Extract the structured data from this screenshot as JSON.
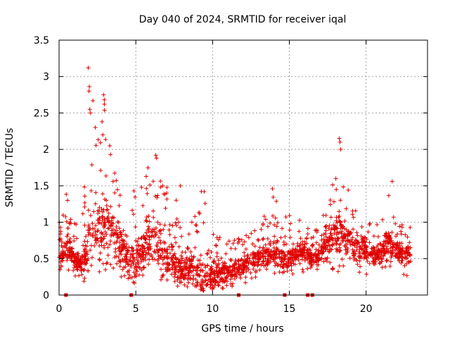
{
  "chart_data": {
    "type": "scatter",
    "title": "Day 040 of 2024, SRMTID for receiver iqal",
    "xlabel": "GPS time / hours",
    "ylabel": "SRMTID / TECUs",
    "xlim": [
      0,
      24
    ],
    "ylim": [
      0,
      3.5
    ],
    "x_ticks": [
      0,
      5,
      10,
      15,
      20
    ],
    "x_tick_labels": [
      "0",
      "5",
      "10",
      "15",
      "20"
    ],
    "y_ticks": [
      0,
      0.5,
      1,
      1.5,
      2,
      2.5,
      3,
      3.5
    ],
    "y_tick_labels": [
      "0",
      "0.5",
      "1",
      "1.5",
      "2",
      "2.5",
      "3",
      "3.5"
    ],
    "grid": true,
    "marker": "+",
    "series_color": "#e00000",
    "series": [
      {
        "name": "SRMTID",
        "envelope_x": [
          0,
          0.5,
          1,
          1.5,
          2,
          2.5,
          3,
          3.5,
          4,
          4.5,
          5,
          5.5,
          6,
          6.5,
          7,
          7.5,
          8,
          8.5,
          9,
          9.5,
          10,
          10.5,
          11,
          11.5,
          12,
          12.5,
          13,
          13.5,
          14,
          14.5,
          15,
          15.5,
          16,
          16.5,
          17,
          17.5,
          18,
          18.5,
          19,
          19.5,
          20,
          20.5,
          21,
          21.5,
          22,
          22.5,
          23
        ],
        "envelope_median": [
          0.6,
          0.65,
          0.5,
          0.4,
          0.85,
          0.95,
          0.95,
          0.9,
          0.7,
          0.5,
          0.45,
          0.65,
          0.75,
          0.6,
          0.5,
          0.45,
          0.3,
          0.4,
          0.3,
          0.25,
          0.25,
          0.3,
          0.3,
          0.3,
          0.4,
          0.5,
          0.5,
          0.55,
          0.55,
          0.5,
          0.5,
          0.6,
          0.6,
          0.5,
          0.55,
          0.7,
          0.85,
          0.8,
          0.7,
          0.65,
          0.65,
          0.55,
          0.6,
          0.75,
          0.6,
          0.55,
          0.6
        ],
        "envelope_max": [
          1.55,
          1.4,
          1.0,
          0.9,
          3.1,
          2.1,
          2.75,
          2.05,
          1.5,
          1.3,
          1.55,
          1.5,
          1.95,
          1.6,
          1.5,
          1.5,
          0.9,
          1.0,
          1.45,
          1.4,
          1.05,
          0.8,
          0.8,
          0.9,
          0.8,
          0.85,
          1.0,
          1.25,
          1.45,
          1.0,
          1.15,
          1.0,
          1.1,
          0.75,
          1.2,
          1.15,
          2.15,
          1.5,
          1.5,
          1.25,
          1.1,
          0.9,
          1.1,
          1.55,
          1.0,
          0.95,
          1.05
        ],
        "envelope_min": [
          0.2,
          0.3,
          0.25,
          0.2,
          0.1,
          0.2,
          0.3,
          0.3,
          0.25,
          0.1,
          0.15,
          0.2,
          0.25,
          0.2,
          0.2,
          0.15,
          0.05,
          0.1,
          0.1,
          0.05,
          0.08,
          0.08,
          0.1,
          0.1,
          0.15,
          0.2,
          0.25,
          0.3,
          0.3,
          0.3,
          0.25,
          0.3,
          0.3,
          0.35,
          0.3,
          0.35,
          0.3,
          0.35,
          0.35,
          0.3,
          0.25,
          0.3,
          0.3,
          0.3,
          0.3,
          0.25,
          0.3
        ],
        "peaks": [
          {
            "x": 1.9,
            "y": 3.12
          },
          {
            "x": 1.95,
            "y": 2.8
          },
          {
            "x": 2.0,
            "y": 2.55
          },
          {
            "x": 2.05,
            "y": 2.5
          },
          {
            "x": 2.9,
            "y": 2.75
          },
          {
            "x": 2.95,
            "y": 2.68
          },
          {
            "x": 2.95,
            "y": 2.62
          },
          {
            "x": 2.8,
            "y": 2.38
          },
          {
            "x": 2.85,
            "y": 2.2
          },
          {
            "x": 3.3,
            "y": 2.05
          },
          {
            "x": 3.35,
            "y": 1.93
          },
          {
            "x": 6.3,
            "y": 1.92
          },
          {
            "x": 6.35,
            "y": 1.88
          },
          {
            "x": 7.9,
            "y": 1.5
          },
          {
            "x": 9.45,
            "y": 1.42
          },
          {
            "x": 13.9,
            "y": 1.46
          },
          {
            "x": 18.25,
            "y": 2.15
          },
          {
            "x": 18.3,
            "y": 2.1
          },
          {
            "x": 18.35,
            "y": 2.0
          },
          {
            "x": 21.7,
            "y": 1.56
          }
        ],
        "zero_markers_x": [
          0.45,
          4.7,
          11.7,
          14.7,
          16.2,
          16.5
        ]
      }
    ]
  }
}
